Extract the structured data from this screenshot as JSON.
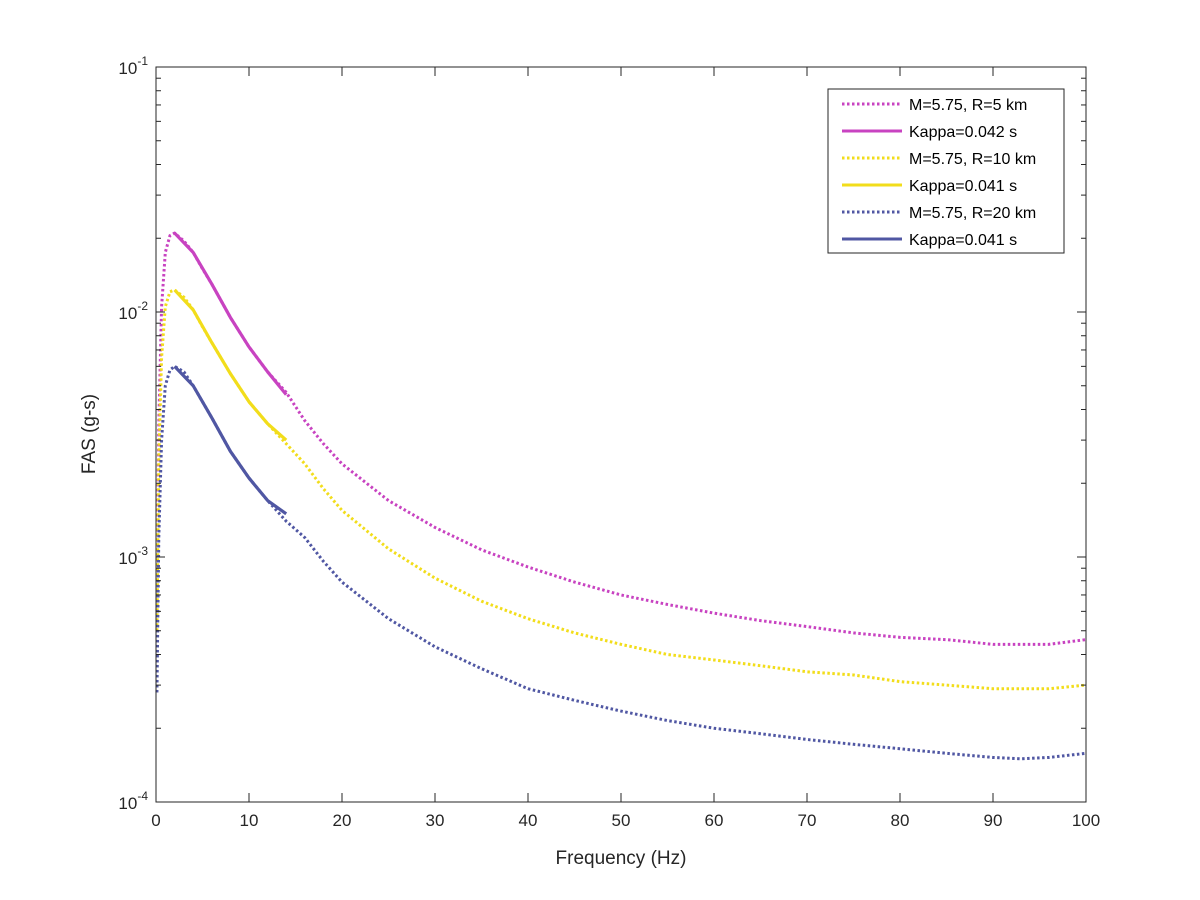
{
  "chart_data": {
    "type": "line",
    "title": "",
    "xlabel": "Frequency (Hz)",
    "ylabel": "FAS (g-s)",
    "x_scale": "linear",
    "y_scale": "log",
    "xlim": [
      0,
      100
    ],
    "ylim": [
      0.0001,
      0.1
    ],
    "grid": false,
    "legend_position": "top-right",
    "x_ticks": [
      0,
      10,
      20,
      30,
      40,
      50,
      60,
      70,
      80,
      90,
      100
    ],
    "x_tick_labels": [
      "0",
      "10",
      "20",
      "30",
      "40",
      "50",
      "60",
      "70",
      "80",
      "90",
      "100"
    ],
    "y_ticks": [
      0.0001,
      0.001,
      0.01,
      0.1
    ],
    "y_tick_labels": [
      {
        "base": "10",
        "exp": "-4"
      },
      {
        "base": "10",
        "exp": "-3"
      },
      {
        "base": "10",
        "exp": "-2"
      },
      {
        "base": "10",
        "exp": "-1"
      }
    ],
    "series": [
      {
        "name": "M=5.75, R=5 km",
        "color": "#c843c1",
        "style": "dotted",
        "x": [
          0.1,
          0.3,
          0.6,
          1.0,
          1.5,
          2.0,
          3,
          4,
          5,
          6,
          8,
          10,
          12,
          14,
          16,
          18,
          20,
          25,
          30,
          35,
          40,
          45,
          50,
          55,
          60,
          65,
          70,
          75,
          80,
          85,
          90,
          93,
          96,
          100
        ],
        "y": [
          0.0006,
          0.0035,
          0.0105,
          0.0175,
          0.0205,
          0.021,
          0.0195,
          0.0175,
          0.015,
          0.013,
          0.0095,
          0.0072,
          0.0057,
          0.0047,
          0.0036,
          0.0029,
          0.0024,
          0.0017,
          0.00132,
          0.00107,
          0.00091,
          0.00079,
          0.0007,
          0.00064,
          0.00059,
          0.00055,
          0.00052,
          0.00049,
          0.00047,
          0.00046,
          0.00044,
          0.00044,
          0.00044,
          0.00046
        ]
      },
      {
        "name": "Kappa=0.042 s",
        "color": "#c843c1",
        "style": "solid",
        "x": [
          2,
          4,
          6,
          8,
          10,
          12,
          14
        ],
        "y": [
          0.021,
          0.0175,
          0.013,
          0.0095,
          0.0072,
          0.0057,
          0.0046
        ]
      },
      {
        "name": "M=5.75, R=10 km",
        "color": "#f2dd1b",
        "style": "dotted",
        "x": [
          0.1,
          0.3,
          0.6,
          1.0,
          1.5,
          2.0,
          3,
          4,
          5,
          6,
          8,
          10,
          12,
          14,
          16,
          18,
          20,
          25,
          30,
          35,
          40,
          45,
          50,
          55,
          60,
          65,
          70,
          75,
          80,
          85,
          90,
          93,
          96,
          100
        ],
        "y": [
          0.0005,
          0.0025,
          0.0065,
          0.0105,
          0.0121,
          0.0123,
          0.0115,
          0.0102,
          0.0087,
          0.0075,
          0.0056,
          0.0043,
          0.0035,
          0.0029,
          0.0024,
          0.0019,
          0.00155,
          0.00108,
          0.00082,
          0.00066,
          0.00056,
          0.00049,
          0.00044,
          0.0004,
          0.00038,
          0.00036,
          0.00034,
          0.00033,
          0.00031,
          0.0003,
          0.00029,
          0.00029,
          0.00029,
          0.0003
        ]
      },
      {
        "name": "Kappa=0.041 s",
        "color": "#f2dd1b",
        "style": "solid",
        "x": [
          2,
          4,
          6,
          8,
          10,
          12,
          14
        ],
        "y": [
          0.0123,
          0.0102,
          0.0075,
          0.0056,
          0.0043,
          0.0035,
          0.003
        ]
      },
      {
        "name": "M=5.75, R=20 km",
        "color": "#5057a3",
        "style": "dotted",
        "x": [
          0.1,
          0.3,
          0.6,
          1.0,
          1.5,
          2.0,
          3,
          4,
          5,
          6,
          8,
          10,
          12,
          14,
          16,
          18,
          20,
          25,
          30,
          35,
          40,
          45,
          50,
          55,
          60,
          65,
          70,
          75,
          80,
          85,
          90,
          93,
          96,
          100
        ],
        "y": [
          0.00028,
          0.0012,
          0.003,
          0.005,
          0.0058,
          0.006,
          0.0057,
          0.005,
          0.0043,
          0.0037,
          0.0027,
          0.0021,
          0.0017,
          0.0014,
          0.0012,
          0.00096,
          0.00079,
          0.00056,
          0.00043,
          0.00035,
          0.00029,
          0.00026,
          0.000235,
          0.000215,
          0.0002,
          0.00019,
          0.00018,
          0.000172,
          0.000165,
          0.000158,
          0.000152,
          0.00015,
          0.000152,
          0.000158
        ]
      },
      {
        "name": "Kappa=0.041 s",
        "color": "#5057a3",
        "style": "solid",
        "x": [
          2,
          4,
          6,
          8,
          10,
          12,
          14
        ],
        "y": [
          0.006,
          0.005,
          0.0037,
          0.0027,
          0.0021,
          0.0017,
          0.0015
        ]
      }
    ]
  }
}
